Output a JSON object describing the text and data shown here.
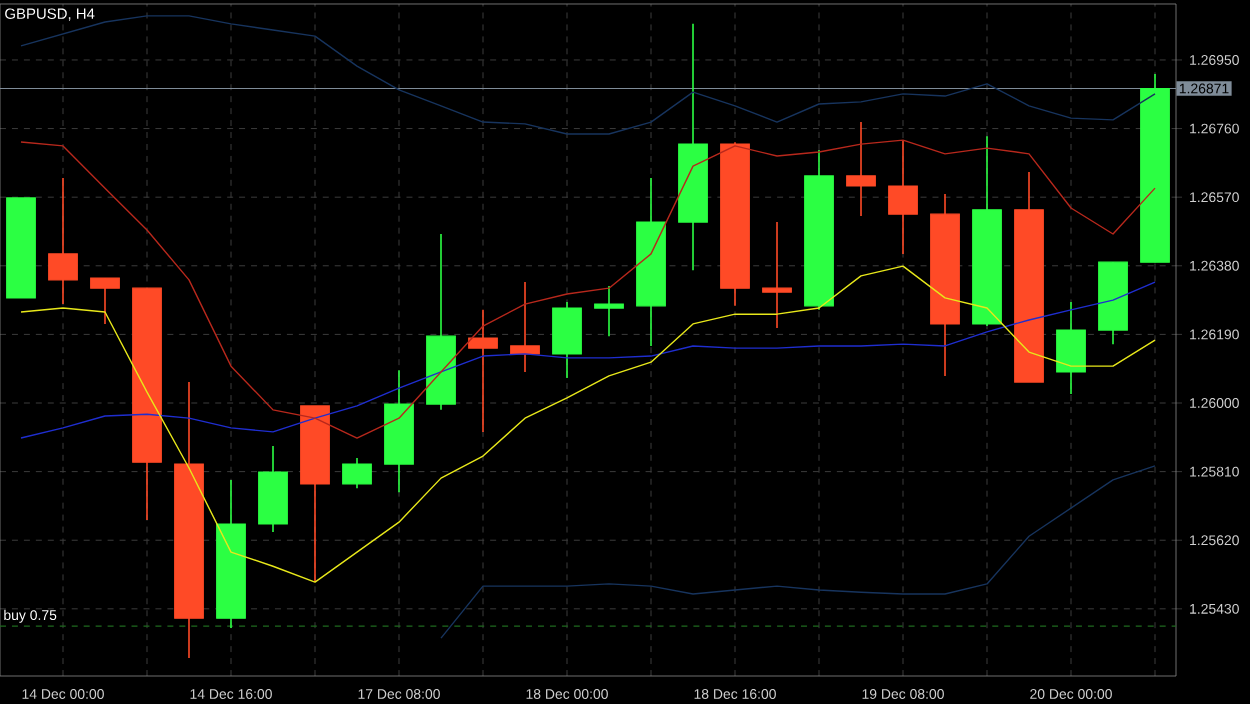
{
  "chart_data": {
    "type": "candlestick",
    "title": "GBPUSD, H4",
    "categories": [
      null,
      "14 Dec 00:00",
      null,
      null,
      null,
      "14 Dec 16:00",
      null,
      null,
      null,
      "17 Dec 08:00",
      null,
      null,
      null,
      "18 Dec 00:00",
      null,
      null,
      null,
      "18 Dec 16:00",
      null,
      null,
      null,
      "19 Dec 08:00",
      null,
      null,
      null,
      "20 Dec 00:00",
      null,
      null
    ],
    "ohlc": [
      [
        1.26291,
        1.26568,
        1.26291,
        1.26568
      ],
      [
        1.26413,
        1.26623,
        1.26274,
        1.26341
      ],
      [
        1.26346,
        1.26346,
        1.26219,
        1.26318
      ],
      [
        1.26318,
        1.26318,
        1.25676,
        1.25836
      ],
      [
        1.25831,
        1.26058,
        1.25294,
        1.25404
      ],
      [
        1.25404,
        1.25787,
        1.25377,
        1.25665
      ],
      [
        1.25665,
        1.25881,
        1.25643,
        1.25809
      ],
      [
        1.25992,
        1.25992,
        1.25504,
        1.25776
      ],
      [
        1.25776,
        1.25848,
        1.25764,
        1.25831
      ],
      [
        1.25831,
        1.26091,
        1.25753,
        1.25997
      ],
      [
        1.25997,
        1.26468,
        1.25981,
        1.26185
      ],
      [
        1.2618,
        1.26258,
        1.2592,
        1.26152
      ],
      [
        1.26158,
        1.26335,
        1.26086,
        1.26136
      ],
      [
        1.26136,
        1.2628,
        1.26069,
        1.26263
      ],
      [
        1.26263,
        1.26324,
        1.26185,
        1.26274
      ],
      [
        1.26269,
        1.26623,
        1.26158,
        1.26501
      ],
      [
        1.26501,
        1.2705,
        1.26368,
        1.26717
      ],
      [
        1.26717,
        1.26722,
        1.26269,
        1.26318
      ],
      [
        1.26318,
        1.26501,
        1.26208,
        1.26307
      ],
      [
        1.26269,
        1.26701,
        1.26258,
        1.26629
      ],
      [
        1.26629,
        1.26778,
        1.26518,
        1.26601
      ],
      [
        1.26601,
        1.26728,
        1.26413,
        1.26523
      ],
      [
        1.26523,
        1.26579,
        1.26075,
        1.26219
      ],
      [
        1.26219,
        1.26739,
        1.26213,
        1.26535
      ],
      [
        1.26535,
        1.2664,
        1.26058,
        1.26058
      ],
      [
        1.26086,
        1.2628,
        1.26025,
        1.26202
      ],
      [
        1.26202,
        1.2639,
        1.26163,
        1.2639
      ],
      [
        1.2639,
        1.26911,
        1.2639,
        1.26871
      ]
    ],
    "colors": [
      "#2bff43",
      "#ff4a26",
      "#ff4a26",
      "#ff4a26",
      "#ff4a26",
      "#2bff43",
      "#2bff43",
      "#ff4a26",
      "#2bff43",
      "#2bff43",
      "#2bff43",
      "#ff4a26",
      "#ff4a26",
      "#2bff43",
      "#2bff43",
      "#2bff43",
      "#2bff43",
      "#ff4a26",
      "#ff4a26",
      "#2bff43",
      "#ff4a26",
      "#ff4a26",
      "#ff4a26",
      "#2bff43",
      "#ff4a26",
      "#2bff43",
      "#2bff43",
      "#2bff43"
    ],
    "series": [
      {
        "type": "line",
        "color": "#17345e",
        "values": [
          1.26989,
          1.27022,
          1.27055,
          1.27072,
          1.27072,
          1.2705,
          1.27033,
          1.27016,
          1.26933,
          1.26867,
          1.26823,
          1.26778,
          1.26773,
          1.26745,
          1.26745,
          1.26778,
          1.26861,
          1.26823,
          1.26778,
          1.26828,
          1.26834,
          1.26856,
          1.2685,
          1.26884,
          1.26823,
          1.26789,
          1.26784,
          1.26856
        ]
      },
      {
        "type": "line",
        "color": "#1f2ed0",
        "values": [
          1.25903,
          1.25931,
          1.25964,
          1.25969,
          1.25958,
          1.25931,
          1.2592,
          1.25958,
          1.25992,
          1.26041,
          1.26086,
          1.2613,
          1.26136,
          1.26125,
          1.26125,
          1.2613,
          1.26158,
          1.26152,
          1.26152,
          1.26158,
          1.26158,
          1.26163,
          1.26158,
          1.26197,
          1.2623,
          1.26258,
          1.26285,
          1.26335
        ]
      },
      {
        "type": "line",
        "color": "#17345e",
        "values": [
          null,
          null,
          null,
          null,
          null,
          null,
          null,
          null,
          null,
          null,
          1.25349,
          1.25493,
          1.25493,
          1.25493,
          1.25499,
          1.25493,
          1.25471,
          1.25482,
          1.25493,
          1.25482,
          1.25476,
          1.25471,
          1.25471,
          1.25499,
          1.25631,
          1.25709,
          1.25787,
          1.25826
        ]
      },
      {
        "type": "line",
        "color": "#b8281c",
        "values": [
          1.26723,
          1.26712,
          1.26595,
          1.26479,
          1.26341,
          1.26102,
          1.25981,
          1.25958,
          1.25903,
          1.25958,
          1.26086,
          1.26213,
          1.26274,
          1.26302,
          1.26318,
          1.26413,
          1.26656,
          1.26712,
          1.26684,
          1.26695,
          1.26717,
          1.26728,
          1.2669,
          1.26706,
          1.2669,
          1.2654,
          1.26468,
          1.26595
        ]
      },
      {
        "type": "line",
        "color": "#e8e81a",
        "values": [
          1.26252,
          1.26263,
          1.26252,
          1.2603,
          1.2582,
          1.25587,
          1.25548,
          1.25504,
          1.25587,
          1.2567,
          1.25792,
          1.25853,
          1.25958,
          1.26014,
          1.26075,
          1.26113,
          1.26219,
          1.26246,
          1.26246,
          1.26263,
          1.26352,
          1.26379,
          1.26291,
          1.26263,
          1.26141,
          1.26102,
          1.26102,
          1.26174
        ]
      }
    ],
    "ylim": [
      1.25244,
      1.27105
    ],
    "yticks": [
      {
        "value": 1.2543,
        "label": "1.25430"
      },
      {
        "value": 1.2562,
        "label": "1.25620"
      },
      {
        "value": 1.2581,
        "label": "1.25810"
      },
      {
        "value": 1.26,
        "label": "1.26000"
      },
      {
        "value": 1.2619,
        "label": "1.26190"
      },
      {
        "value": 1.2638,
        "label": "1.26380"
      },
      {
        "value": 1.2657,
        "label": "1.26570"
      },
      {
        "value": 1.2676,
        "label": "1.26760"
      },
      {
        "value": 1.2695,
        "label": "1.26950"
      }
    ],
    "ref_lines": [
      {
        "axis": "y",
        "value": 1.26871,
        "label": "1.26871",
        "color": "#7f8c99"
      },
      {
        "axis": "y",
        "value": 1.25382,
        "label": "buy 0.75",
        "color": "#1f6b1f",
        "line_style": "dashed"
      }
    ],
    "grid": true
  }
}
